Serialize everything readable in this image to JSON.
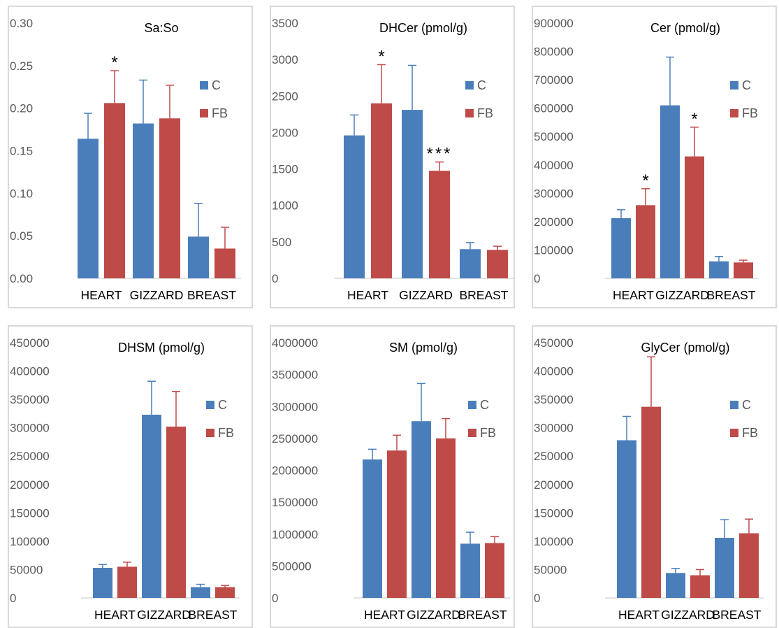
{
  "colors": {
    "C": "#4a7ebb",
    "FB": "#be4b48",
    "axis": "#d9d9d9",
    "text": "#595959"
  },
  "chart_data": [
    {
      "type": "bar",
      "title": "Sa:So",
      "categories": [
        "HEART",
        "GIZZARD",
        "BREAST"
      ],
      "series": [
        {
          "name": "C",
          "values": [
            0.164,
            0.182,
            0.049
          ],
          "errors": [
            0.03,
            0.051,
            0.039
          ]
        },
        {
          "name": "FB",
          "values": [
            0.206,
            0.188,
            0.035
          ],
          "errors": [
            0.038,
            0.039,
            0.025
          ]
        }
      ],
      "significance": [
        {
          "series": 1,
          "category": 0,
          "label": "*"
        }
      ],
      "ylim": [
        0,
        0.3
      ],
      "yticks": [
        "0.00",
        "0.05",
        "0.10",
        "0.15",
        "0.20",
        "0.25",
        "0.30"
      ],
      "grid": false,
      "legend": "right"
    },
    {
      "type": "bar",
      "title": "DHCer (pmol/g)",
      "categories": [
        "HEART",
        "GIZZARD",
        "BREAST"
      ],
      "series": [
        {
          "name": "C",
          "values": [
            1960,
            2310,
            400
          ],
          "errors": [
            280,
            610,
            90
          ]
        },
        {
          "name": "FB",
          "values": [
            2400,
            1475,
            390
          ],
          "errors": [
            530,
            120,
            50
          ]
        }
      ],
      "significance": [
        {
          "series": 1,
          "category": 0,
          "label": "*"
        },
        {
          "series": 1,
          "category": 1,
          "label": "***"
        }
      ],
      "ylim": [
        0,
        3500
      ],
      "yticks": [
        "0",
        "500",
        "1000",
        "1500",
        "2000",
        "2500",
        "3000",
        "3500"
      ],
      "grid": false,
      "legend": "right"
    },
    {
      "type": "bar",
      "title": "Cer (pmol/g)",
      "categories": [
        "HEART",
        "GIZZARD",
        "BREAST"
      ],
      "series": [
        {
          "name": "C",
          "values": [
            212000,
            610000,
            60000
          ],
          "errors": [
            30000,
            170000,
            17000
          ]
        },
        {
          "name": "FB",
          "values": [
            258000,
            430000,
            56000
          ],
          "errors": [
            58000,
            103000,
            8000
          ]
        }
      ],
      "significance": [
        {
          "series": 1,
          "category": 0,
          "label": "*"
        },
        {
          "series": 1,
          "category": 1,
          "label": "*"
        }
      ],
      "ylim": [
        0,
        900000
      ],
      "yticks": [
        "0",
        "100000",
        "200000",
        "300000",
        "400000",
        "500000",
        "600000",
        "700000",
        "800000",
        "900000"
      ],
      "grid": false,
      "legend": "right"
    },
    {
      "type": "bar",
      "title": "DHSM (pmol/g)",
      "categories": [
        "HEART",
        "GIZZARD",
        "BREAST"
      ],
      "series": [
        {
          "name": "C",
          "values": [
            53000,
            323000,
            19000
          ],
          "errors": [
            6000,
            59000,
            5000
          ]
        },
        {
          "name": "FB",
          "values": [
            55000,
            302000,
            19000
          ],
          "errors": [
            8000,
            62000,
            3000
          ]
        }
      ],
      "significance": [],
      "ylim": [
        0,
        450000
      ],
      "yticks": [
        "0",
        "50000",
        "100000",
        "150000",
        "200000",
        "250000",
        "300000",
        "350000",
        "400000",
        "450000"
      ],
      "grid": false,
      "legend": "right"
    },
    {
      "type": "bar",
      "title": "SM (pmol/g)",
      "categories": [
        "HEART",
        "GIZZARD",
        "BREAST"
      ],
      "series": [
        {
          "name": "C",
          "values": [
            2170000,
            2770000,
            850000
          ],
          "errors": [
            160000,
            590000,
            180000
          ]
        },
        {
          "name": "FB",
          "values": [
            2310000,
            2500000,
            860000
          ],
          "errors": [
            240000,
            310000,
            100000
          ]
        }
      ],
      "significance": [],
      "ylim": [
        0,
        4000000
      ],
      "yticks": [
        "0",
        "500000",
        "1000000",
        "1500000",
        "2000000",
        "2500000",
        "3000000",
        "3500000",
        "4000000"
      ],
      "grid": false,
      "legend": "right"
    },
    {
      "type": "bar",
      "title": "GlyCer (pmol/g)",
      "categories": [
        "HEART",
        "GIZZARD",
        "BREAST"
      ],
      "series": [
        {
          "name": "C",
          "values": [
            278000,
            44000,
            106000
          ],
          "errors": [
            42000,
            8000,
            32000
          ]
        },
        {
          "name": "FB",
          "values": [
            337000,
            40000,
            114000
          ],
          "errors": [
            88000,
            10000,
            25000
          ]
        }
      ],
      "significance": [],
      "ylim": [
        0,
        450000
      ],
      "yticks": [
        "0",
        "50000",
        "100000",
        "150000",
        "200000",
        "250000",
        "300000",
        "350000",
        "400000",
        "450000"
      ],
      "grid": false,
      "legend": "right"
    }
  ]
}
